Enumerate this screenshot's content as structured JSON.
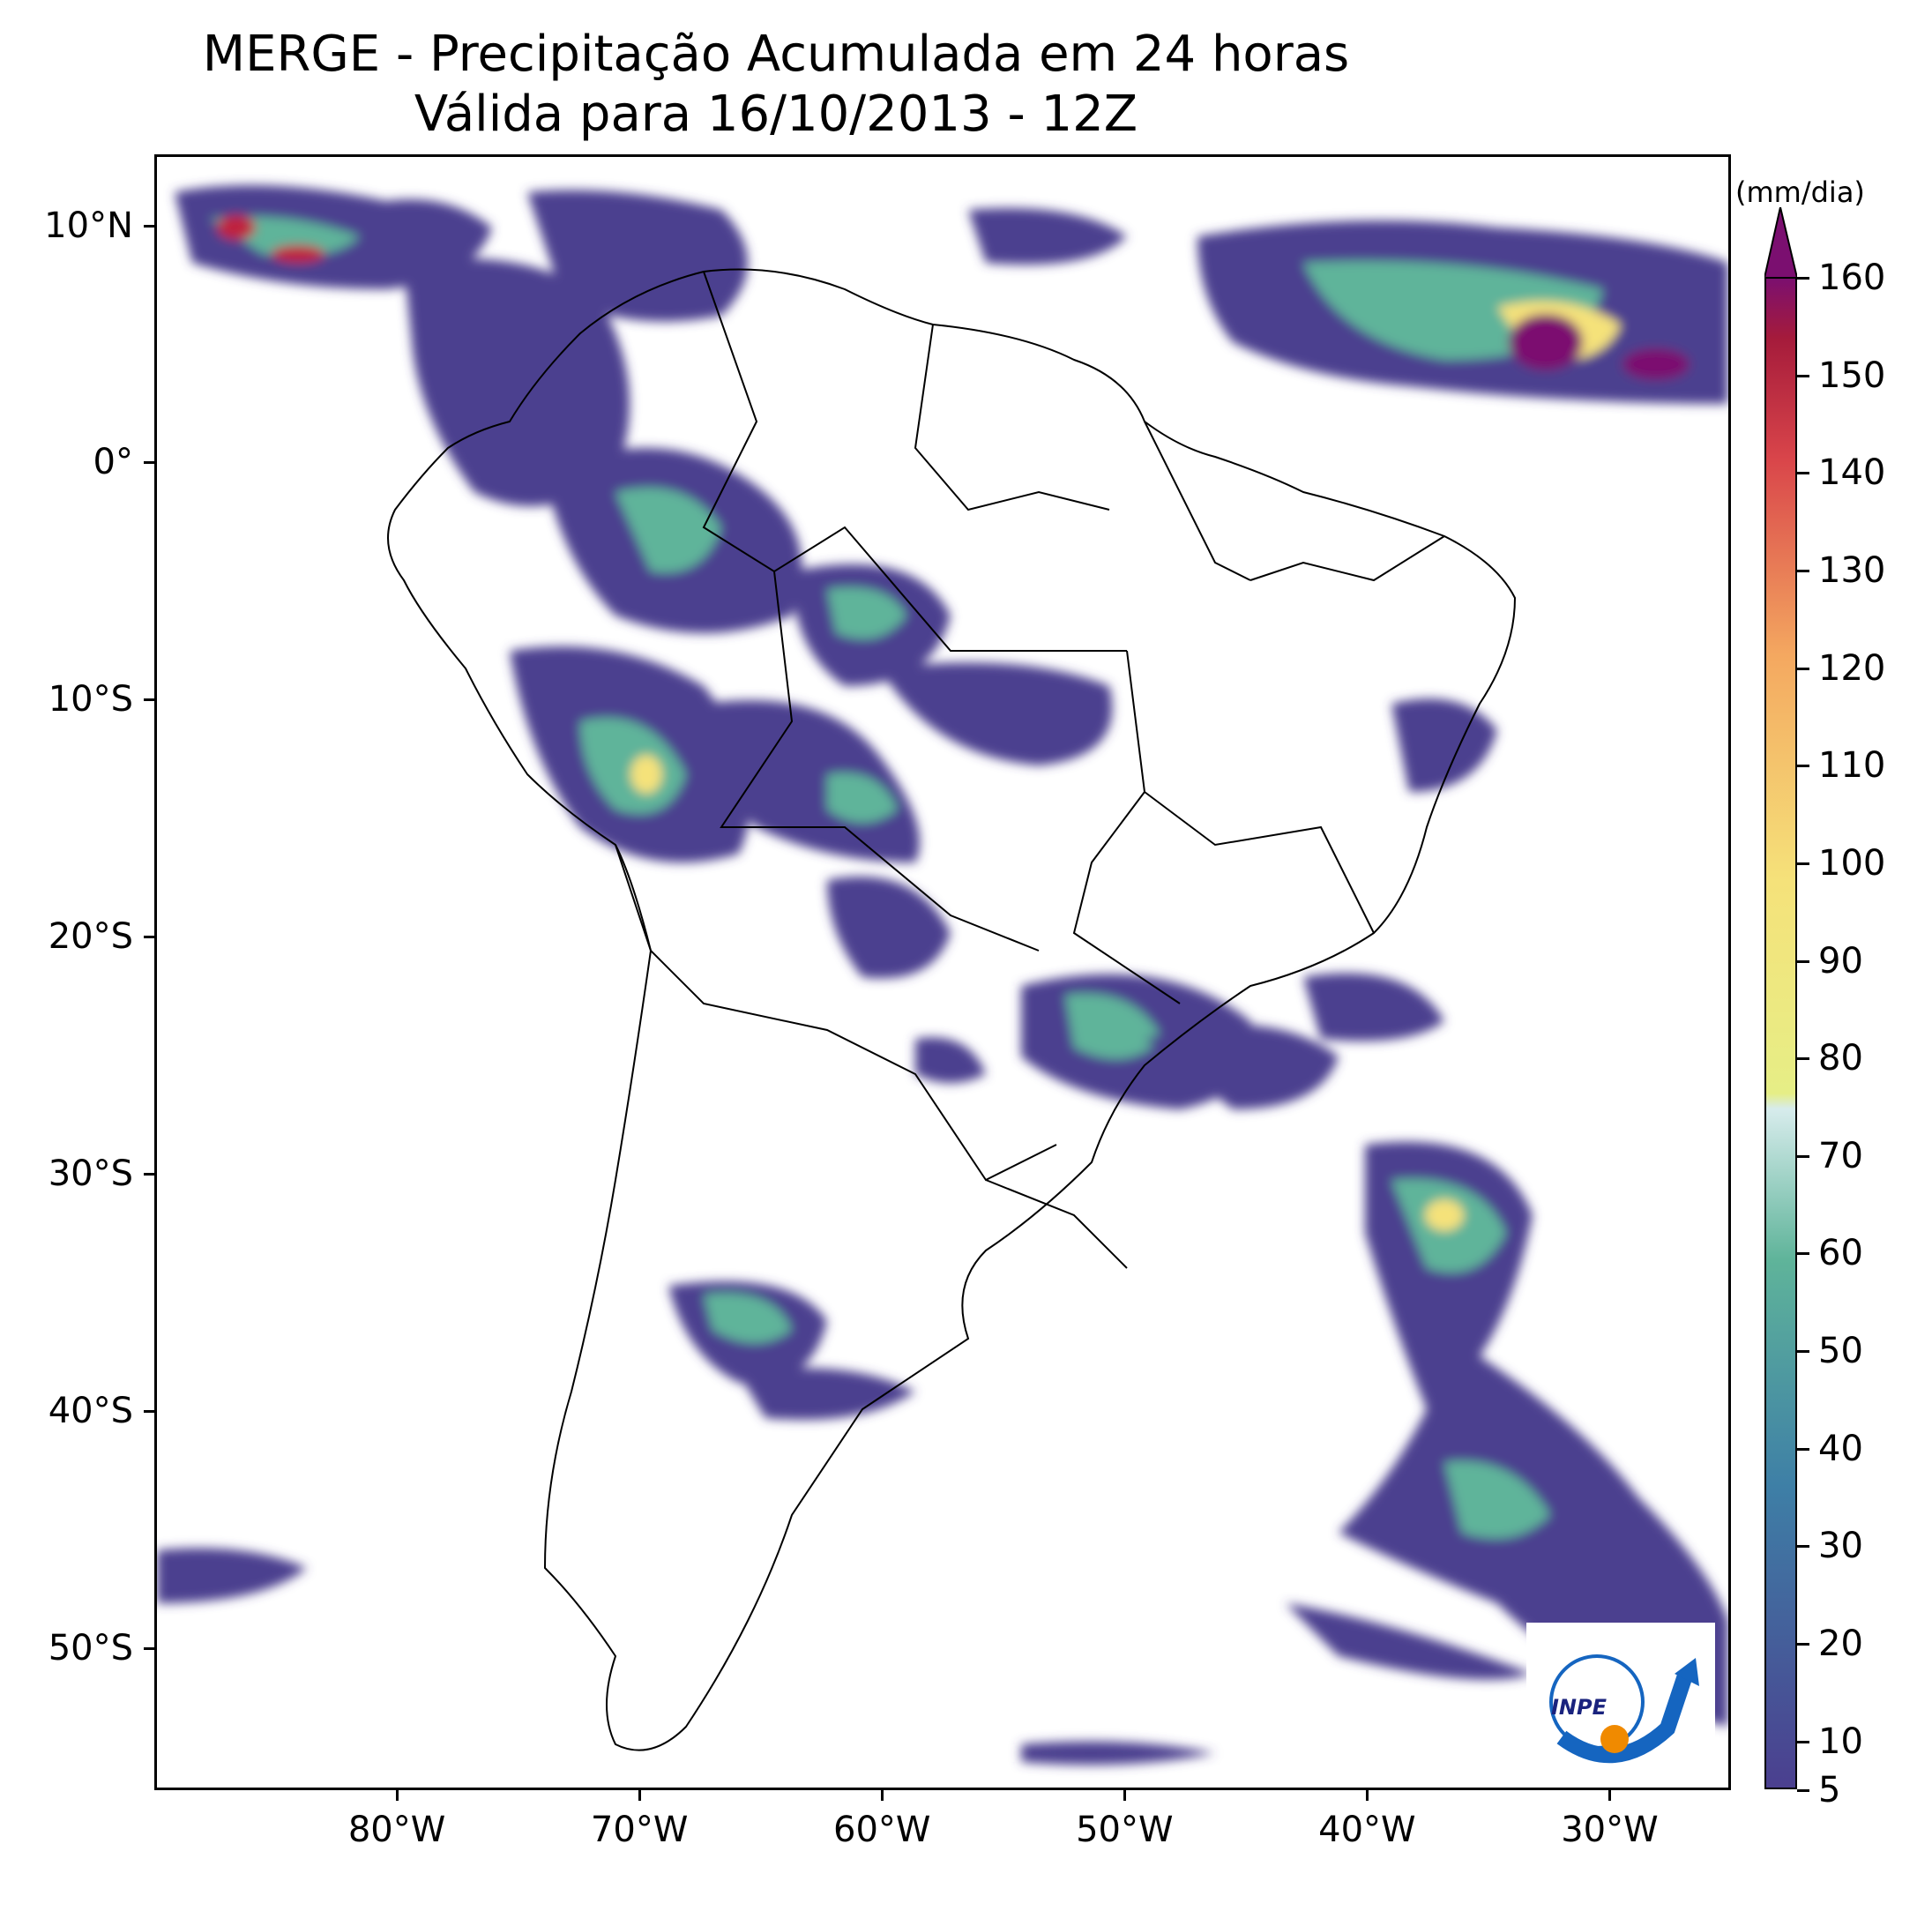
{
  "title": {
    "line1": "MERGE - Precipitação Acumulada em 24 horas",
    "line2": "Válida para 16/10/2013 - 12Z"
  },
  "axes": {
    "lat_labels": [
      "10°N",
      "0°",
      "10°S",
      "20°S",
      "30°S",
      "40°S",
      "50°S"
    ],
    "lon_labels": [
      "80°W",
      "70°W",
      "60°W",
      "50°W",
      "40°W",
      "30°W"
    ],
    "lat_values": [
      10,
      0,
      -10,
      -20,
      -30,
      -40,
      -50
    ],
    "lon_values": [
      -80,
      -70,
      -60,
      -50,
      -40,
      -30
    ],
    "lon_range": [
      -90,
      -25
    ],
    "lat_range": [
      -56,
      13
    ]
  },
  "colorbar": {
    "unit": "(mm/dia)",
    "labels": [
      "160",
      "150",
      "140",
      "130",
      "120",
      "110",
      "100",
      "90",
      "80",
      "70",
      "60",
      "50",
      "40",
      "30",
      "20",
      "10",
      "5"
    ],
    "values": [
      160,
      150,
      140,
      130,
      120,
      110,
      100,
      90,
      80,
      70,
      60,
      50,
      40,
      30,
      20,
      10,
      5
    ],
    "extend": "max",
    "colors": {
      "low": "#4b3f8f",
      "mid": "#5fb49a",
      "high": "#f5e27a",
      "peak": "#c0243c",
      "max": "#7b0f70"
    }
  },
  "logo": {
    "text": "INPE",
    "colors": {
      "arc": "#1565c0",
      "dot": "#f08a00"
    }
  }
}
